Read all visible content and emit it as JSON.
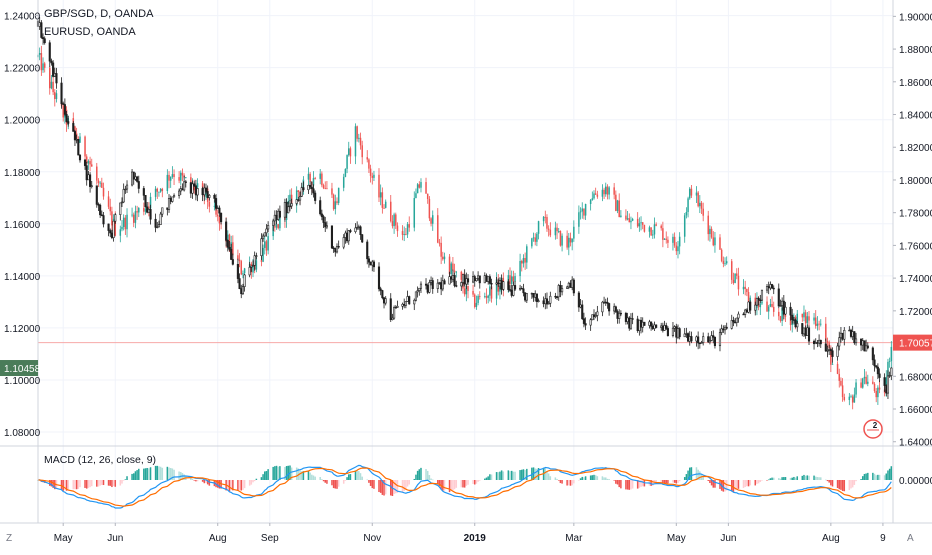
{
  "chart_data": [
    {
      "type": "candlestick",
      "title": "GBP/SGD, D, OANDA",
      "overlay_title": "EURUSD, OANDA",
      "ylim_left": [
        1.075,
        1.246
      ],
      "ylim_right": [
        1.638,
        1.91
      ],
      "left_ticks": [
        "1.24000",
        "1.22000",
        "1.20000",
        "1.18000",
        "1.16000",
        "1.14000",
        "1.12000",
        "1.10000",
        "1.08000"
      ],
      "right_ticks": [
        "1.90000",
        "1.88000",
        "1.86000",
        "1.84000",
        "1.82000",
        "1.80000",
        "1.78000",
        "1.76000",
        "1.74000",
        "1.72000",
        "1.70000",
        "1.68000",
        "1.66000",
        "1.64000"
      ],
      "left_last_value": "1.10458",
      "right_last_value": "1.70057",
      "price_line_value": 1.70057,
      "x_ticks": [
        "May",
        "Jun",
        "Aug",
        "Sep",
        "Nov",
        "2019",
        "Mar",
        "May",
        "Jun",
        "Aug",
        "9"
      ],
      "gbpsgd_keypoints": [
        {
          "date": "2018-04-16",
          "close": 1.875
        },
        {
          "date": "2018-05-01",
          "close": 1.84
        },
        {
          "date": "2018-05-15",
          "close": 1.815
        },
        {
          "date": "2018-06-01",
          "close": 1.77
        },
        {
          "date": "2018-06-20",
          "close": 1.785
        },
        {
          "date": "2018-07-05",
          "close": 1.805
        },
        {
          "date": "2018-07-25",
          "close": 1.79
        },
        {
          "date": "2018-08-15",
          "close": 1.745
        },
        {
          "date": "2018-08-25",
          "close": 1.75
        },
        {
          "date": "2018-09-15",
          "close": 1.79
        },
        {
          "date": "2018-09-30",
          "close": 1.805
        },
        {
          "date": "2018-10-10",
          "close": 1.785
        },
        {
          "date": "2018-10-22",
          "close": 1.83
        },
        {
          "date": "2018-11-05",
          "close": 1.79
        },
        {
          "date": "2018-11-20",
          "close": 1.765
        },
        {
          "date": "2018-11-30",
          "close": 1.8
        },
        {
          "date": "2018-12-12",
          "close": 1.755
        },
        {
          "date": "2018-12-31",
          "close": 1.725
        },
        {
          "date": "2019-01-15",
          "close": 1.735
        },
        {
          "date": "2019-01-25",
          "close": 1.74
        },
        {
          "date": "2019-02-10",
          "close": 1.775
        },
        {
          "date": "2019-02-25",
          "close": 1.76
        },
        {
          "date": "2019-03-10",
          "close": 1.79
        },
        {
          "date": "2019-03-20",
          "close": 1.795
        },
        {
          "date": "2019-04-01",
          "close": 1.775
        },
        {
          "date": "2019-04-20",
          "close": 1.77
        },
        {
          "date": "2019-05-01",
          "close": 1.76
        },
        {
          "date": "2019-05-10",
          "close": 1.795
        },
        {
          "date": "2019-05-25",
          "close": 1.76
        },
        {
          "date": "2019-06-10",
          "close": 1.73
        },
        {
          "date": "2019-06-25",
          "close": 1.72
        },
        {
          "date": "2019-07-10",
          "close": 1.715
        },
        {
          "date": "2019-07-25",
          "close": 1.715
        },
        {
          "date": "2019-08-10",
          "close": 1.66
        },
        {
          "date": "2019-08-20",
          "close": 1.68
        },
        {
          "date": "2019-09-01",
          "close": 1.665
        },
        {
          "date": "2019-09-06",
          "close": 1.7
        }
      ],
      "eurusd_keypoints": [
        {
          "date": "2018-04-16",
          "close": 1.238
        },
        {
          "date": "2018-05-01",
          "close": 1.205
        },
        {
          "date": "2018-05-20",
          "close": 1.17
        },
        {
          "date": "2018-05-29",
          "close": 1.155
        },
        {
          "date": "2018-06-10",
          "close": 1.18
        },
        {
          "date": "2018-06-25",
          "close": 1.16
        },
        {
          "date": "2018-07-10",
          "close": 1.175
        },
        {
          "date": "2018-07-30",
          "close": 1.17
        },
        {
          "date": "2018-08-15",
          "close": 1.135
        },
        {
          "date": "2018-09-01",
          "close": 1.16
        },
        {
          "date": "2018-09-24",
          "close": 1.175
        },
        {
          "date": "2018-10-10",
          "close": 1.15
        },
        {
          "date": "2018-10-22",
          "close": 1.16
        },
        {
          "date": "2018-11-12",
          "close": 1.125
        },
        {
          "date": "2018-12-01",
          "close": 1.135
        },
        {
          "date": "2019-01-01",
          "close": 1.14
        },
        {
          "date": "2019-01-20",
          "close": 1.135
        },
        {
          "date": "2019-02-10",
          "close": 1.13
        },
        {
          "date": "2019-02-28",
          "close": 1.138
        },
        {
          "date": "2019-03-08",
          "close": 1.12
        },
        {
          "date": "2019-03-20",
          "close": 1.13
        },
        {
          "date": "2019-04-01",
          "close": 1.122
        },
        {
          "date": "2019-04-20",
          "close": 1.12
        },
        {
          "date": "2019-05-01",
          "close": 1.118
        },
        {
          "date": "2019-05-23",
          "close": 1.115
        },
        {
          "date": "2019-06-01",
          "close": 1.12
        },
        {
          "date": "2019-06-25",
          "close": 1.136
        },
        {
          "date": "2019-07-10",
          "close": 1.122
        },
        {
          "date": "2019-08-01",
          "close": 1.11
        },
        {
          "date": "2019-08-10",
          "close": 1.12
        },
        {
          "date": "2019-08-25",
          "close": 1.11
        },
        {
          "date": "2019-09-03",
          "close": 1.097
        },
        {
          "date": "2019-09-06",
          "close": 1.104
        }
      ],
      "colors": {
        "up": "#26a69a",
        "down": "#ef5350",
        "overlay_up": "#ffffff",
        "overlay_down": "#1e1e1e",
        "price_line": "#f7a9a8",
        "left_label_bg": "#4a7c59",
        "right_label_bg": "#ef5350"
      },
      "badge_count": "2"
    },
    {
      "type": "histogram+line",
      "title": "MACD (12, 26, close, 9)",
      "right_ticks": [
        "0.00000"
      ],
      "ylim": [
        -0.04,
        0.04
      ],
      "colors": {
        "macd": "#2196f3",
        "signal": "#ff6d00",
        "hist_pos_strong": "#26a69a",
        "hist_pos_weak": "#b2dfdb",
        "hist_neg_strong": "#ef5350",
        "hist_neg_weak": "#ffcdd2"
      }
    }
  ],
  "timeframe": {
    "start": "2018-04-16",
    "end": "2019-09-07"
  },
  "corner_labels": {
    "bottom_left": "Z",
    "bottom_right": "A"
  }
}
